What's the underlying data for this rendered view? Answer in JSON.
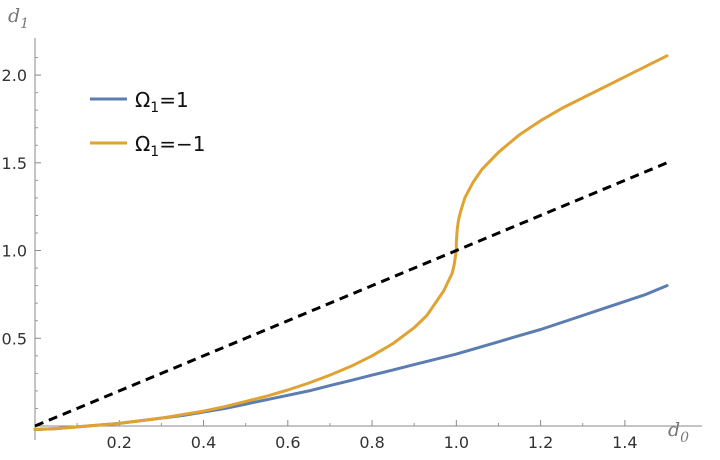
{
  "chart_data": {
    "type": "line",
    "xlabel": {
      "base": "d",
      "sub": "0"
    },
    "ylabel": {
      "base": "d",
      "sub": "1"
    },
    "xlim": [
      0,
      1.5
    ],
    "ylim": [
      0,
      2.2
    ],
    "xticks": [
      0.2,
      0.4,
      0.6,
      0.8,
      1.0,
      1.2,
      1.4
    ],
    "xtick_labels": [
      "0.2",
      "0.4",
      "0.6",
      "0.8",
      "1.0",
      "1.2",
      "1.4"
    ],
    "yticks": [
      0.5,
      1.0,
      1.5,
      2.0
    ],
    "ytick_labels": [
      "0.5",
      "1.0",
      "1.5",
      "2.0"
    ],
    "grid": false,
    "legend_position": "top-left",
    "series": [
      {
        "name": "Ω1=1",
        "legend": {
          "symbol": "Ω",
          "sub": "1",
          "rest": "=1"
        },
        "color": "#5B7DB1",
        "style": "solid",
        "x": [
          0,
          0.05,
          0.1,
          0.15,
          0.2,
          0.25,
          0.3,
          0.35,
          0.4,
          0.45,
          0.5,
          0.55,
          0.6,
          0.65,
          0.7,
          0.75,
          0.8,
          0.85,
          0.9,
          0.95,
          1.0,
          1.05,
          1.1,
          1.15,
          1.2,
          1.25,
          1.3,
          1.35,
          1.4,
          1.45,
          1.5
        ],
        "y": [
          -0.02,
          -0.015,
          -0.005,
          0.005,
          0.015,
          0.03,
          0.045,
          0.06,
          0.08,
          0.1,
          0.125,
          0.15,
          0.175,
          0.2,
          0.23,
          0.26,
          0.29,
          0.32,
          0.35,
          0.38,
          0.41,
          0.445,
          0.48,
          0.515,
          0.55,
          0.59,
          0.63,
          0.67,
          0.71,
          0.75,
          0.8
        ]
      },
      {
        "name": "Ω1=−1",
        "legend": {
          "symbol": "Ω",
          "sub": "1",
          "rest": "=−1"
        },
        "color": "#E0A233",
        "style": "solid",
        "x": [
          0,
          0.05,
          0.1,
          0.15,
          0.2,
          0.25,
          0.3,
          0.35,
          0.4,
          0.45,
          0.5,
          0.55,
          0.6,
          0.65,
          0.7,
          0.75,
          0.8,
          0.85,
          0.9,
          0.93,
          0.95,
          0.97,
          0.98,
          0.99,
          0.995,
          1.0,
          1.0,
          1.002,
          1.005,
          1.01,
          1.02,
          1.04,
          1.06,
          1.08,
          1.1,
          1.15,
          1.2,
          1.25,
          1.3,
          1.35,
          1.4,
          1.45,
          1.5
        ],
        "y": [
          -0.02,
          -0.015,
          -0.005,
          0.005,
          0.015,
          0.03,
          0.045,
          0.065,
          0.085,
          0.11,
          0.14,
          0.17,
          0.205,
          0.245,
          0.29,
          0.34,
          0.4,
          0.47,
          0.56,
          0.63,
          0.7,
          0.77,
          0.82,
          0.87,
          0.92,
          1.0,
          1.04,
          1.12,
          1.17,
          1.22,
          1.3,
          1.39,
          1.46,
          1.51,
          1.56,
          1.66,
          1.74,
          1.81,
          1.87,
          1.93,
          1.99,
          2.05,
          2.11
        ]
      },
      {
        "name": "",
        "color": "#000000",
        "style": "dashed",
        "x": [
          0,
          1.5
        ],
        "y": [
          0,
          1.5
        ]
      }
    ]
  }
}
